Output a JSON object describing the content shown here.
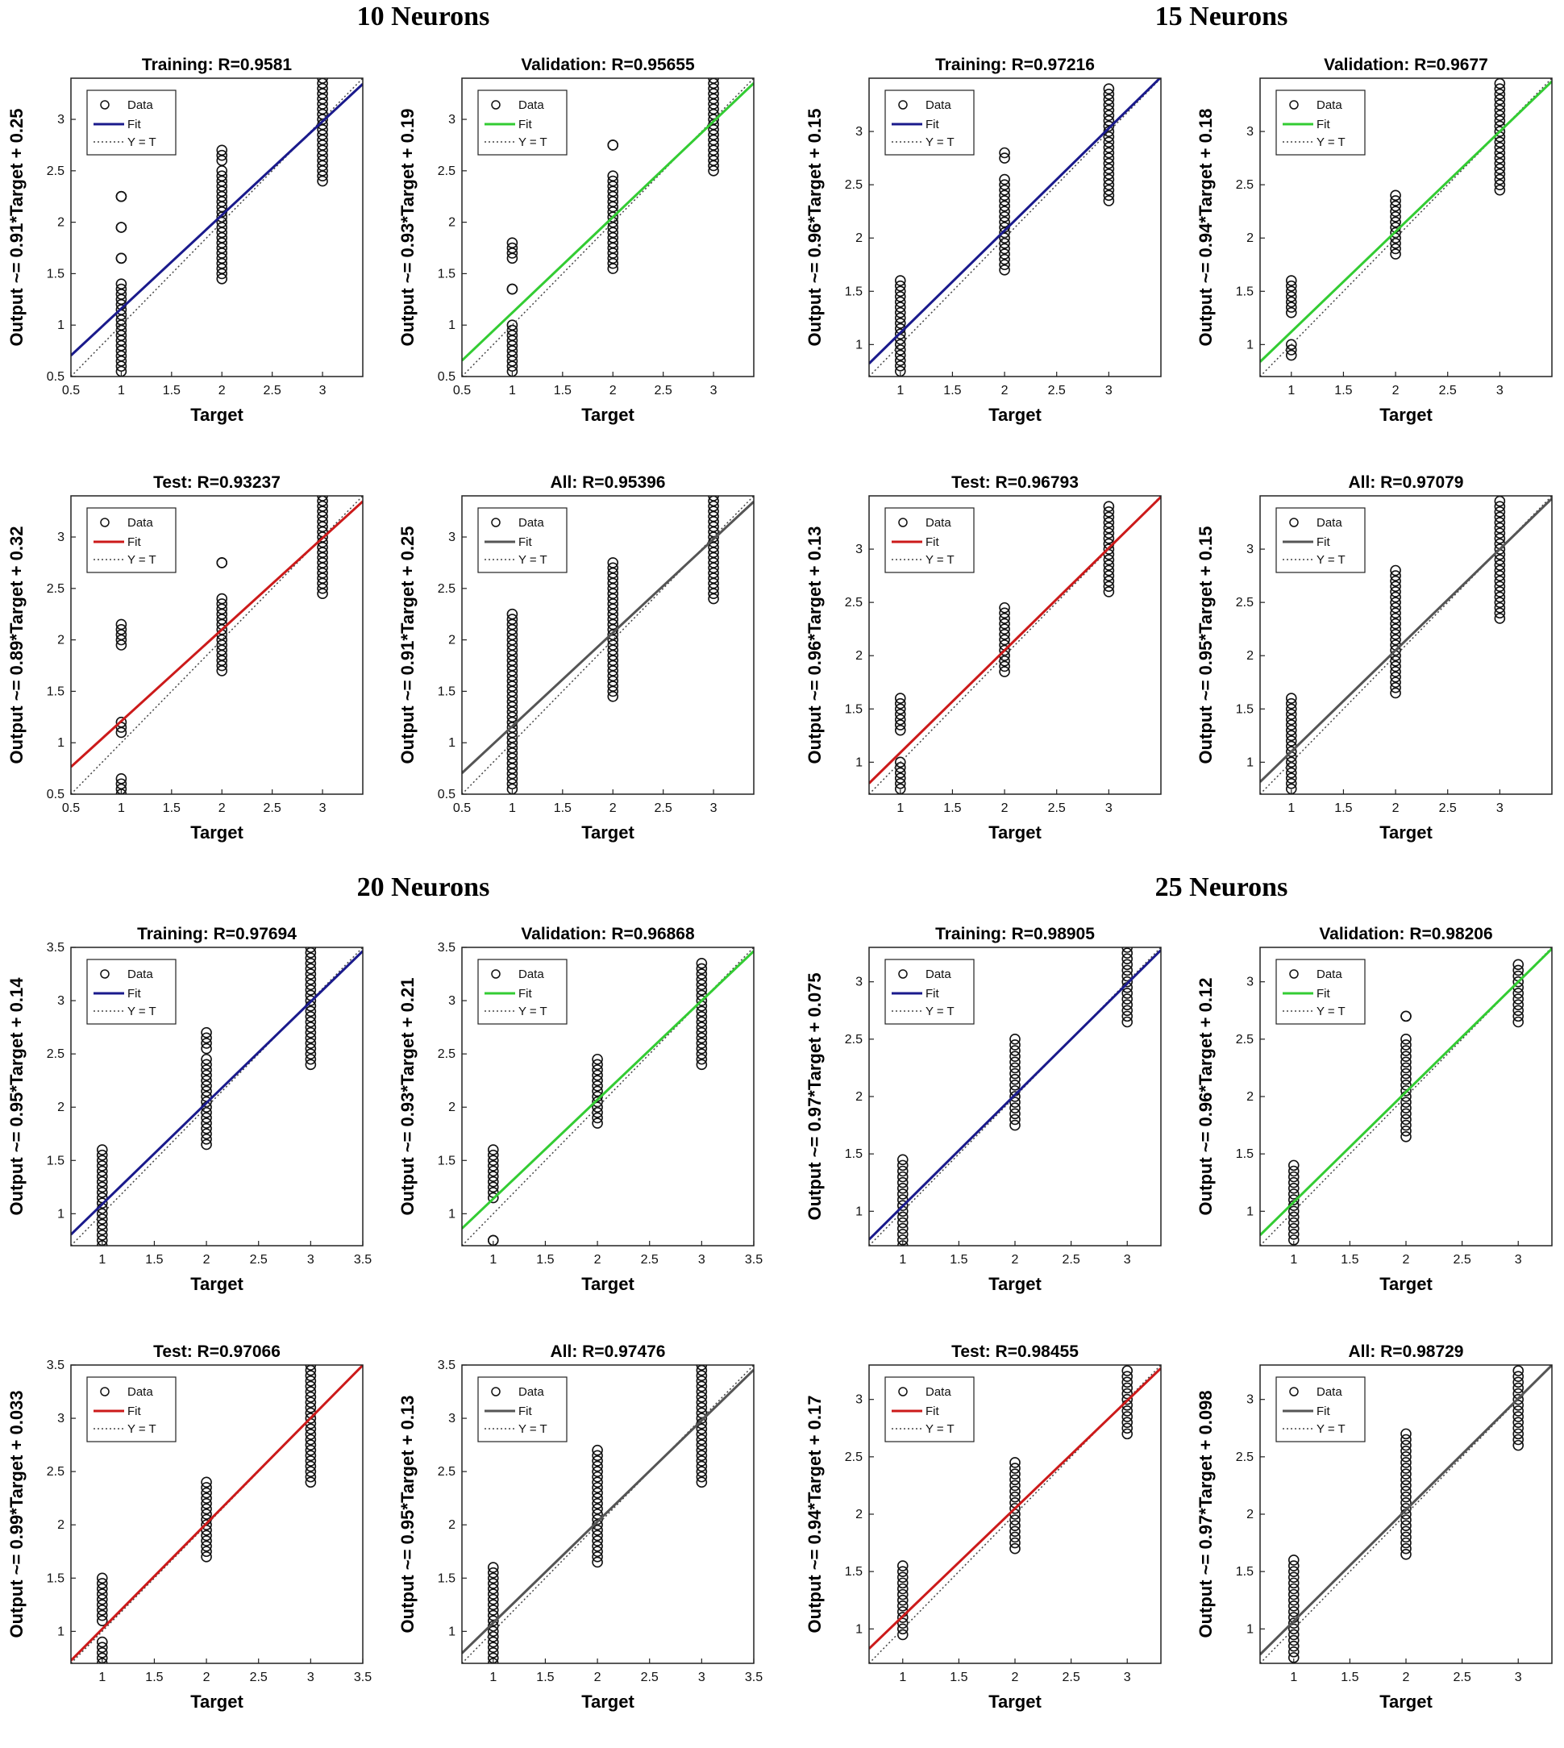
{
  "sections": [
    {
      "title": "10 Neurons"
    },
    {
      "title": "15 Neurons"
    },
    {
      "title": "20 Neurons"
    },
    {
      "title": "25 Neurons"
    }
  ],
  "legend": {
    "data": "Data",
    "fit": "Fit",
    "yt": "Y = T"
  },
  "colors": {
    "training": "#1a1a8c",
    "validation": "#33cc33",
    "test": "#cc1a1a",
    "all": "#555555"
  },
  "chart_data": [
    {
      "type": "scatter",
      "title": "Training: R=0.9581",
      "xlabel": "Target",
      "ylabel": "Output ~= 0.91*Target + 0.25",
      "slope": 0.91,
      "intercept": 0.25,
      "fit_color": "#1a1a8c",
      "xlim": [
        0.5,
        3.4
      ],
      "ylim": [
        0.5,
        3.4
      ],
      "xticks": [
        "0.5",
        "1",
        "1.5",
        "2",
        "2.5",
        "3"
      ],
      "yticks": [
        "0.5",
        "1",
        "1.5",
        "2",
        "2.5",
        "3"
      ],
      "points": [
        [
          1,
          0.55,
          1.4
        ],
        [
          1,
          1.65,
          1.65
        ],
        [
          1,
          1.95,
          1.95
        ],
        [
          1,
          2.25,
          2.25
        ],
        [
          2,
          1.45,
          2.5
        ],
        [
          2,
          2.6,
          2.7
        ],
        [
          3,
          2.4,
          3.4
        ]
      ]
    },
    {
      "type": "scatter",
      "title": "Validation: R=0.95655",
      "xlabel": "Target",
      "ylabel": "Output ~= 0.93*Target + 0.19",
      "slope": 0.93,
      "intercept": 0.19,
      "fit_color": "#33cc33",
      "xlim": [
        0.5,
        3.4
      ],
      "ylim": [
        0.5,
        3.4
      ],
      "xticks": [
        "0.5",
        "1",
        "1.5",
        "2",
        "2.5",
        "3"
      ],
      "yticks": [
        "0.5",
        "1",
        "1.5",
        "2",
        "2.5",
        "3"
      ],
      "points": [
        [
          1,
          0.55,
          1.0
        ],
        [
          1,
          1.35,
          1.35
        ],
        [
          1,
          1.65,
          1.8
        ],
        [
          2,
          1.55,
          2.45
        ],
        [
          2,
          2.75,
          2.75
        ],
        [
          3,
          2.5,
          3.4
        ]
      ]
    },
    {
      "type": "scatter",
      "title": "Training: R=0.97216",
      "xlabel": "Target",
      "ylabel": "Output ~= 0.96*Target + 0.15",
      "slope": 0.96,
      "intercept": 0.15,
      "fit_color": "#1a1a8c",
      "xlim": [
        0.7,
        3.5
      ],
      "ylim": [
        0.7,
        3.5
      ],
      "xticks": [
        "1",
        "1.5",
        "2",
        "2.5",
        "3"
      ],
      "yticks": [
        "1",
        "1.5",
        "2",
        "2.5",
        "3"
      ],
      "points": [
        [
          1,
          0.75,
          1.6
        ],
        [
          2,
          1.7,
          2.55
        ],
        [
          2,
          2.75,
          2.8
        ],
        [
          3,
          2.35,
          3.4
        ]
      ]
    },
    {
      "type": "scatter",
      "title": "Validation: R=0.9677",
      "xlabel": "Target",
      "ylabel": "Output ~= 0.94*Target + 0.18",
      "slope": 0.94,
      "intercept": 0.18,
      "fit_color": "#33cc33",
      "xlim": [
        0.7,
        3.5
      ],
      "ylim": [
        0.7,
        3.5
      ],
      "xticks": [
        "1",
        "1.5",
        "2",
        "2.5",
        "3"
      ],
      "yticks": [
        "1",
        "1.5",
        "2",
        "2.5",
        "3"
      ],
      "points": [
        [
          1,
          0.9,
          1.0
        ],
        [
          1,
          1.3,
          1.6
        ],
        [
          2,
          1.85,
          2.4
        ],
        [
          3,
          2.45,
          3.45
        ]
      ]
    },
    {
      "type": "scatter",
      "title": "Test: R=0.93237",
      "xlabel": "Target",
      "ylabel": "Output ~= 0.89*Target + 0.32",
      "slope": 0.89,
      "intercept": 0.32,
      "fit_color": "#cc1a1a",
      "xlim": [
        0.5,
        3.4
      ],
      "ylim": [
        0.5,
        3.4
      ],
      "xticks": [
        "0.5",
        "1",
        "1.5",
        "2",
        "2.5",
        "3"
      ],
      "yticks": [
        "0.5",
        "1",
        "1.5",
        "2",
        "2.5",
        "3"
      ],
      "points": [
        [
          1,
          0.5,
          0.65
        ],
        [
          1,
          1.1,
          1.2
        ],
        [
          1,
          1.95,
          2.15
        ],
        [
          2,
          1.7,
          2.4
        ],
        [
          2,
          2.75,
          2.75
        ],
        [
          3,
          2.45,
          3.4
        ]
      ]
    },
    {
      "type": "scatter",
      "title": "All: R=0.95396",
      "xlabel": "Target",
      "ylabel": "Output ~= 0.91*Target + 0.25",
      "slope": 0.91,
      "intercept": 0.25,
      "fit_color": "#555555",
      "xlim": [
        0.5,
        3.4
      ],
      "ylim": [
        0.5,
        3.4
      ],
      "xticks": [
        "0.5",
        "1",
        "1.5",
        "2",
        "2.5",
        "3"
      ],
      "yticks": [
        "0.5",
        "1",
        "1.5",
        "2",
        "2.5",
        "3"
      ],
      "points": [
        [
          1,
          0.55,
          2.25
        ],
        [
          2,
          1.45,
          2.75
        ],
        [
          3,
          2.4,
          3.4
        ]
      ]
    },
    {
      "type": "scatter",
      "title": "Test: R=0.96793",
      "xlabel": "Target",
      "ylabel": "Output ~= 0.96*Target + 0.13",
      "slope": 0.96,
      "intercept": 0.13,
      "fit_color": "#cc1a1a",
      "xlim": [
        0.7,
        3.5
      ],
      "ylim": [
        0.7,
        3.5
      ],
      "xticks": [
        "1",
        "1.5",
        "2",
        "2.5",
        "3"
      ],
      "yticks": [
        "1",
        "1.5",
        "2",
        "2.5",
        "3"
      ],
      "points": [
        [
          1,
          0.75,
          1.0
        ],
        [
          1,
          1.3,
          1.6
        ],
        [
          2,
          1.85,
          2.45
        ],
        [
          3,
          2.6,
          3.4
        ]
      ]
    },
    {
      "type": "scatter",
      "title": "All: R=0.97079",
      "xlabel": "Target",
      "ylabel": "Output ~= 0.95*Target + 0.15",
      "slope": 0.95,
      "intercept": 0.15,
      "fit_color": "#555555",
      "xlim": [
        0.7,
        3.5
      ],
      "ylim": [
        0.7,
        3.5
      ],
      "xticks": [
        "1",
        "1.5",
        "2",
        "2.5",
        "3"
      ],
      "yticks": [
        "1",
        "1.5",
        "2",
        "2.5",
        "3"
      ],
      "points": [
        [
          1,
          0.75,
          1.6
        ],
        [
          2,
          1.65,
          2.8
        ],
        [
          3,
          2.35,
          3.45
        ]
      ]
    },
    {
      "type": "scatter",
      "title": "Training: R=0.97694",
      "xlabel": "Target",
      "ylabel": "Output ~= 0.95*Target + 0.14",
      "slope": 0.95,
      "intercept": 0.14,
      "fit_color": "#1a1a8c",
      "xlim": [
        0.7,
        3.5
      ],
      "ylim": [
        0.7,
        3.5
      ],
      "xticks": [
        "1",
        "1.5",
        "2",
        "2.5",
        "3",
        "3.5"
      ],
      "yticks": [
        "1",
        "1.5",
        "2",
        "2.5",
        "3",
        "3.5"
      ],
      "points": [
        [
          1,
          0.7,
          1.6
        ],
        [
          2,
          1.65,
          2.45
        ],
        [
          2,
          2.55,
          2.7
        ],
        [
          3,
          2.4,
          3.5
        ]
      ]
    },
    {
      "type": "scatter",
      "title": "Validation: R=0.96868",
      "xlabel": "Target",
      "ylabel": "Output ~= 0.93*Target + 0.21",
      "slope": 0.93,
      "intercept": 0.21,
      "fit_color": "#33cc33",
      "xlim": [
        0.7,
        3.5
      ],
      "ylim": [
        0.7,
        3.5
      ],
      "xticks": [
        "1",
        "1.5",
        "2",
        "2.5",
        "3",
        "3.5"
      ],
      "yticks": [
        "1",
        "1.5",
        "2",
        "2.5",
        "3",
        "3.5"
      ],
      "points": [
        [
          1,
          0.75,
          0.75
        ],
        [
          1,
          1.15,
          1.6
        ],
        [
          2,
          1.85,
          2.45
        ],
        [
          3,
          2.4,
          3.35
        ]
      ]
    },
    {
      "type": "scatter",
      "title": "Training: R=0.98905",
      "xlabel": "Target",
      "ylabel": "Output ~= 0.97*Target + 0.075",
      "slope": 0.97,
      "intercept": 0.075,
      "fit_color": "#1a1a8c",
      "xlim": [
        0.7,
        3.3
      ],
      "ylim": [
        0.7,
        3.3
      ],
      "xticks": [
        "1",
        "1.5",
        "2",
        "2.5",
        "3"
      ],
      "yticks": [
        "1",
        "1.5",
        "2",
        "2.5",
        "3"
      ],
      "points": [
        [
          1,
          0.7,
          1.45
        ],
        [
          2,
          1.75,
          2.5
        ],
        [
          3,
          2.65,
          3.3
        ]
      ]
    },
    {
      "type": "scatter",
      "title": "Validation: R=0.98206",
      "xlabel": "Target",
      "ylabel": "Output ~= 0.96*Target + 0.12",
      "slope": 0.96,
      "intercept": 0.12,
      "fit_color": "#33cc33",
      "xlim": [
        0.7,
        3.3
      ],
      "ylim": [
        0.7,
        3.3
      ],
      "xticks": [
        "1",
        "1.5",
        "2",
        "2.5",
        "3"
      ],
      "yticks": [
        "1",
        "1.5",
        "2",
        "2.5",
        "3"
      ],
      "points": [
        [
          1,
          0.75,
          1.4
        ],
        [
          2,
          1.65,
          2.5
        ],
        [
          2,
          2.7,
          2.7
        ],
        [
          3,
          2.65,
          3.15
        ]
      ]
    },
    {
      "type": "scatter",
      "title": "Test: R=0.97066",
      "xlabel": "Target",
      "ylabel": "Output ~= 0.99*Target + 0.033",
      "slope": 0.99,
      "intercept": 0.033,
      "fit_color": "#cc1a1a",
      "xlim": [
        0.7,
        3.5
      ],
      "ylim": [
        0.7,
        3.5
      ],
      "xticks": [
        "1",
        "1.5",
        "2",
        "2.5",
        "3",
        "3.5"
      ],
      "yticks": [
        "1",
        "1.5",
        "2",
        "2.5",
        "3",
        "3.5"
      ],
      "points": [
        [
          1,
          0.7,
          0.9
        ],
        [
          1,
          1.1,
          1.5
        ],
        [
          2,
          1.7,
          2.4
        ],
        [
          3,
          2.4,
          3.5
        ]
      ]
    },
    {
      "type": "scatter",
      "title": "All: R=0.97476",
      "xlabel": "Target",
      "ylabel": "Output ~= 0.95*Target + 0.13",
      "slope": 0.95,
      "intercept": 0.13,
      "fit_color": "#555555",
      "xlim": [
        0.7,
        3.5
      ],
      "ylim": [
        0.7,
        3.5
      ],
      "xticks": [
        "1",
        "1.5",
        "2",
        "2.5",
        "3",
        "3.5"
      ],
      "yticks": [
        "1",
        "1.5",
        "2",
        "2.5",
        "3",
        "3.5"
      ],
      "points": [
        [
          1,
          0.7,
          1.6
        ],
        [
          2,
          1.65,
          2.7
        ],
        [
          3,
          2.4,
          3.5
        ]
      ]
    },
    {
      "type": "scatter",
      "title": "Test: R=0.98455",
      "xlabel": "Target",
      "ylabel": "Output ~= 0.94*Target + 0.17",
      "slope": 0.94,
      "intercept": 0.17,
      "fit_color": "#cc1a1a",
      "xlim": [
        0.7,
        3.3
      ],
      "ylim": [
        0.7,
        3.3
      ],
      "xticks": [
        "1",
        "1.5",
        "2",
        "2.5",
        "3"
      ],
      "yticks": [
        "1",
        "1.5",
        "2",
        "2.5",
        "3"
      ],
      "points": [
        [
          1,
          0.95,
          1.55
        ],
        [
          2,
          1.7,
          2.45
        ],
        [
          3,
          2.7,
          3.25
        ]
      ]
    },
    {
      "type": "scatter",
      "title": "All: R=0.98729",
      "xlabel": "Target",
      "ylabel": "Output ~= 0.97*Target + 0.098",
      "slope": 0.97,
      "intercept": 0.098,
      "fit_color": "#555555",
      "xlim": [
        0.7,
        3.3
      ],
      "ylim": [
        0.7,
        3.3
      ],
      "xticks": [
        "1",
        "1.5",
        "2",
        "2.5",
        "3"
      ],
      "yticks": [
        "1",
        "1.5",
        "2",
        "2.5",
        "3"
      ],
      "points": [
        [
          1,
          0.75,
          1.6
        ],
        [
          2,
          1.65,
          2.7
        ],
        [
          3,
          2.6,
          3.25
        ]
      ]
    }
  ]
}
